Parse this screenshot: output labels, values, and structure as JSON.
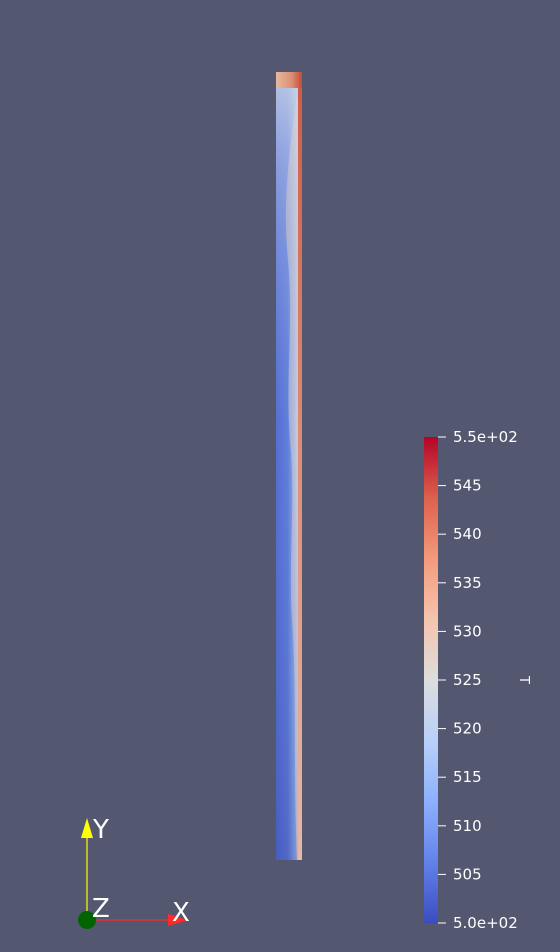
{
  "scalar_bar": {
    "variable": "T",
    "range": [
      500,
      550
    ],
    "ticks": [
      {
        "value": 550,
        "label": "5.5e+02"
      },
      {
        "value": 545,
        "label": "545"
      },
      {
        "value": 540,
        "label": "540"
      },
      {
        "value": 535,
        "label": "535"
      },
      {
        "value": 530,
        "label": "530"
      },
      {
        "value": 525,
        "label": "525"
      },
      {
        "value": 520,
        "label": "520"
      },
      {
        "value": 515,
        "label": "515"
      },
      {
        "value": 510,
        "label": "510"
      },
      {
        "value": 505,
        "label": "505"
      },
      {
        "value": 500,
        "label": "5.0e+02"
      }
    ],
    "colormap": "Cool to Warm",
    "colors": {
      "low": "#3b4cc0",
      "mid": "#dddddd",
      "high": "#b40426"
    }
  },
  "orientation_axes": {
    "x_label": "X",
    "y_label": "Y",
    "z_label": "Z",
    "x_color": "#ff2a2a",
    "y_color": "#ffff00",
    "z_color": "#006400"
  },
  "render": {
    "background": "#535870"
  }
}
